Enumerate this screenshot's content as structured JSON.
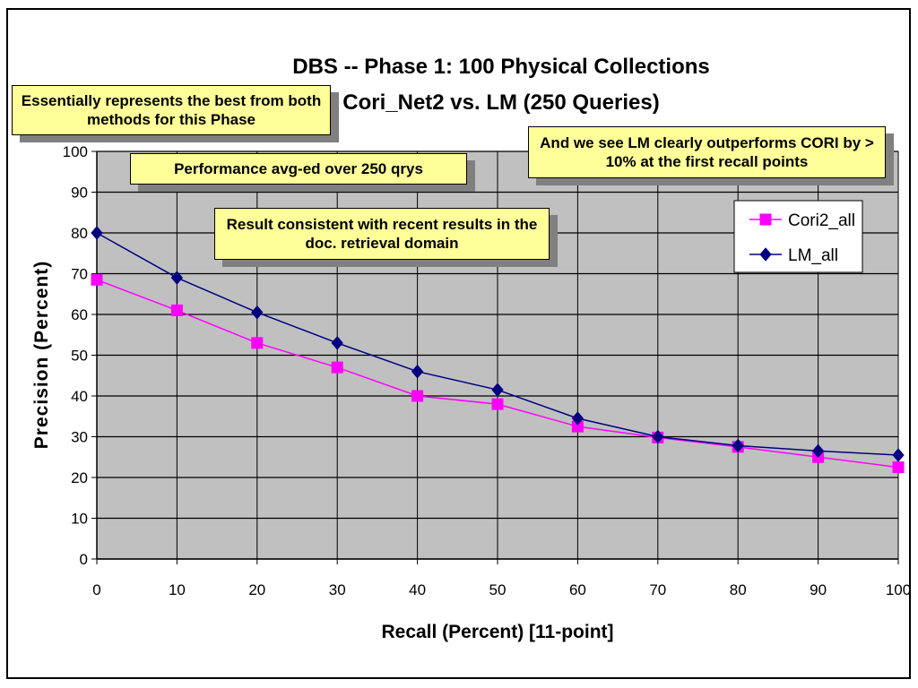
{
  "chart_data": {
    "type": "line",
    "title": [
      "DBS -- Phase 1: 100 Physical Collections",
      "Cori_Net2 vs. LM  (250 Queries)"
    ],
    "xlabel": "Recall  (Percent)  [11-point]",
    "ylabel": "Precision  (Percent)",
    "x": [
      0,
      10,
      20,
      30,
      40,
      50,
      60,
      70,
      80,
      90,
      100
    ],
    "xlim": [
      0,
      100
    ],
    "ylim": [
      0,
      100
    ],
    "xticks": [
      0,
      10,
      20,
      30,
      40,
      50,
      60,
      70,
      80,
      90,
      100
    ],
    "yticks": [
      0,
      10,
      20,
      30,
      40,
      50,
      60,
      70,
      80,
      90,
      100
    ],
    "grid": true,
    "legend_position": "top-right",
    "series": [
      {
        "name": "Cori2_all",
        "color": "#ff00ff",
        "marker": "square",
        "values": [
          68.5,
          61,
          53,
          47,
          40,
          38,
          32.5,
          29.8,
          27.5,
          25,
          22.5
        ]
      },
      {
        "name": "LM_all",
        "color": "#000080",
        "marker": "diamond",
        "values": [
          80,
          69,
          60.5,
          53,
          46,
          41.5,
          34.5,
          30,
          27.8,
          26.5,
          25.5
        ]
      }
    ],
    "plot_background": "#c0c0c0"
  },
  "notes": {
    "best": "Essentially represents the best from both methods for this Phase",
    "avg": "Performance avg-ed over 250 qrys",
    "consistent": "Result consistent with recent results in the doc. retrieval domain",
    "outperforms": "And we see LM clearly outperforms CORI by > 10% at the first recall points"
  },
  "note_color": "#ffff99"
}
